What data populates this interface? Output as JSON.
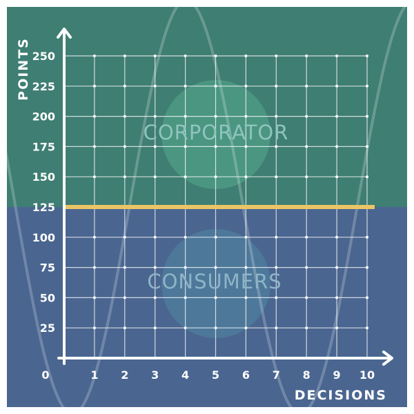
{
  "colors": {
    "upper_region": "#3f7e73",
    "lower_region": "#4a6690",
    "threshold_line": "#ebc565",
    "grid": "#ffffff",
    "axis": "#ffffff",
    "upper_circle": "#56a98c",
    "lower_circle": "#5186a2",
    "upper_label": "#8fc4bd",
    "lower_label": "#8fb4c8"
  },
  "chart_data": {
    "type": "line",
    "xlabel": "DECISIONS",
    "ylabel": "POINTS",
    "x_ticks": [
      0,
      1,
      2,
      3,
      4,
      5,
      6,
      7,
      8,
      9,
      10
    ],
    "y_ticks": [
      25,
      50,
      75,
      100,
      125,
      150,
      175,
      200,
      225,
      250
    ],
    "xlim": [
      0,
      10
    ],
    "ylim": [
      0,
      250
    ],
    "grid": true,
    "threshold": {
      "value": 125,
      "color": "#ebc565"
    },
    "regions": [
      {
        "label": "CORPORATOR",
        "position": "above threshold"
      },
      {
        "label": "CONSUMERS",
        "position": "below threshold"
      }
    ]
  }
}
